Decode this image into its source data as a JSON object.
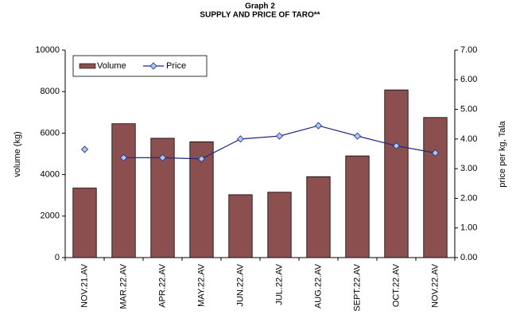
{
  "chart_data": {
    "type": "bar_line",
    "title": "Graph 2",
    "subtitle": "SUPPLY AND PRICE OF TARO**",
    "y_label": "volume (kg)",
    "y2_label": "price per kg, Tala",
    "categories": [
      "NOV.21.AV",
      "MAR.22.AV",
      "APR.22.AV",
      "MAY.22.AV",
      "JUN.22.AV",
      "JUL.22.AV",
      "AUG.22.AV",
      "SEPT.22.AV",
      "OCT.22.AV",
      "NOV.22.AV"
    ],
    "series": [
      {
        "name": "Volume",
        "type": "bar",
        "color": "#8c4f50",
        "values": [
          3350,
          6450,
          5750,
          5580,
          3030,
          3150,
          3900,
          4900,
          8080,
          6750
        ]
      },
      {
        "name": "Price",
        "type": "line",
        "axis": "y2",
        "color": "#1f2a80",
        "marker_color": "#a9c8f0",
        "values": [
          3.65,
          3.37,
          3.37,
          3.33,
          4.0,
          4.1,
          4.45,
          4.1,
          3.77,
          3.53
        ]
      }
    ],
    "ylim": [
      0,
      10000
    ],
    "yticks": [
      0,
      2000,
      4000,
      6000,
      8000,
      10000
    ],
    "y2lim": [
      0,
      7
    ],
    "y2ticks": [
      {
        "value": 0,
        "label": "0.00"
      },
      {
        "value": 1,
        "label": "1.00"
      },
      {
        "value": 2,
        "label": "2.00"
      },
      {
        "value": 3,
        "label": "3.00"
      },
      {
        "value": 4,
        "label": "4.00"
      },
      {
        "value": 5,
        "label": "5.00"
      },
      {
        "value": 6,
        "label": "6.00"
      },
      {
        "value": 7,
        "label": "7.00"
      }
    ],
    "legend": "top-left"
  }
}
